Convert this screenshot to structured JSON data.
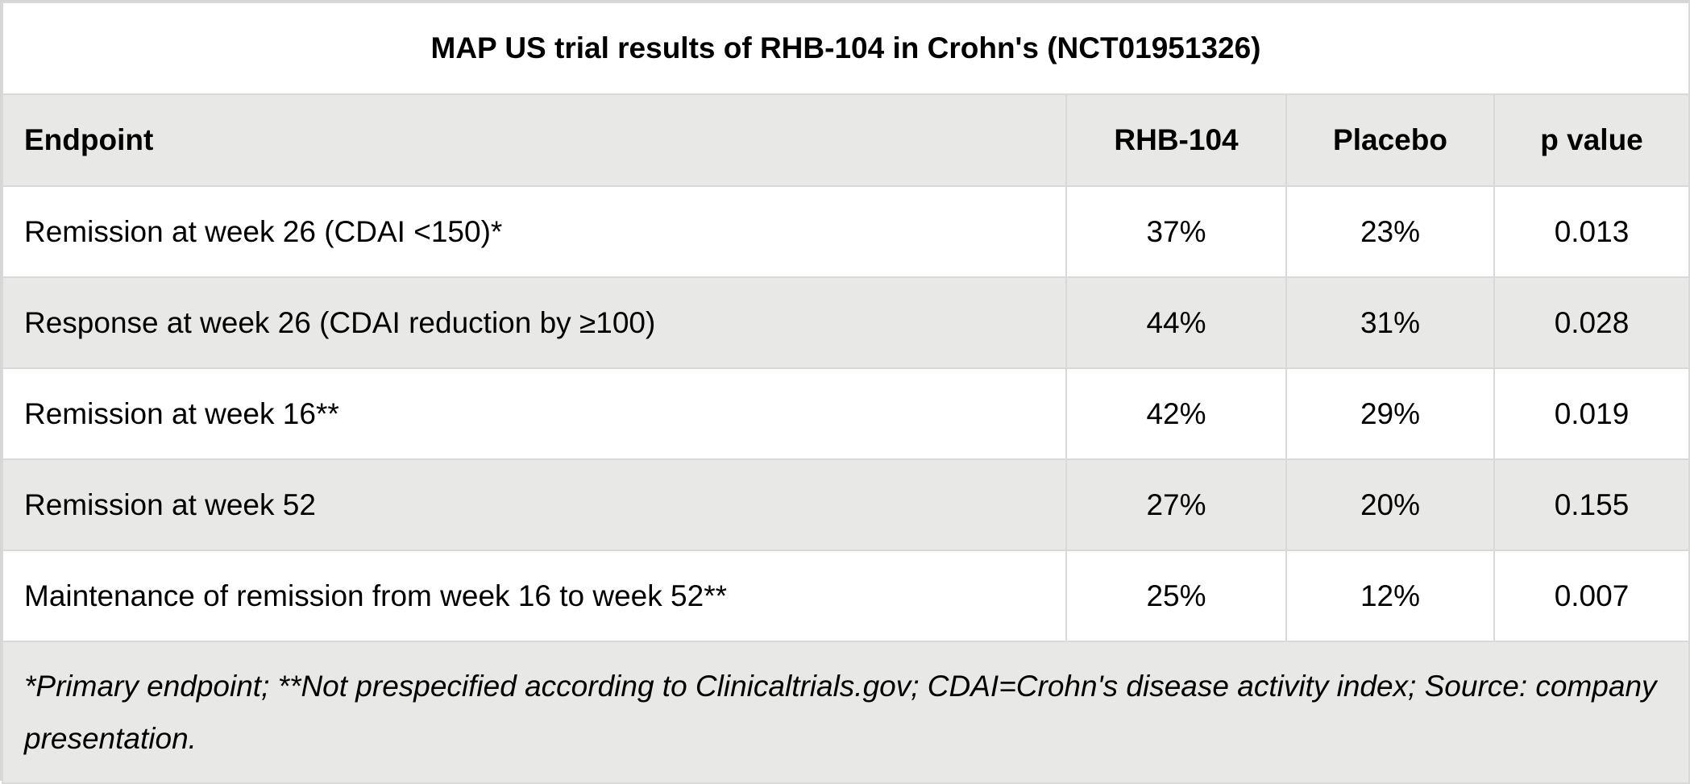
{
  "table": {
    "title": "MAP US trial results of RHB-104 in Crohn's (NCT01951326)",
    "columns": [
      "Endpoint",
      "RHB-104",
      "Placebo",
      "p value"
    ],
    "rows": [
      {
        "endpoint": "Remission at week 26 (CDAI <150)*",
        "rhb104": "37%",
        "placebo": "23%",
        "p_value": "0.013"
      },
      {
        "endpoint": "Response at week 26 (CDAI reduction by ≥100)",
        "rhb104": "44%",
        "placebo": "31%",
        "p_value": "0.028"
      },
      {
        "endpoint": "Remission at week 16**",
        "rhb104": "42%",
        "placebo": "29%",
        "p_value": "0.019"
      },
      {
        "endpoint": "Remission at week 52",
        "rhb104": "27%",
        "placebo": "20%",
        "p_value": "0.155"
      },
      {
        "endpoint": "Maintenance of remission from week 16 to week 52**",
        "rhb104": "25%",
        "placebo": "12%",
        "p_value": "0.007"
      }
    ],
    "footnote": "*Primary endpoint; **Not prespecified according to Clinicaltrials.gov; CDAI=Crohn's disease activity index; Source: company presentation."
  }
}
